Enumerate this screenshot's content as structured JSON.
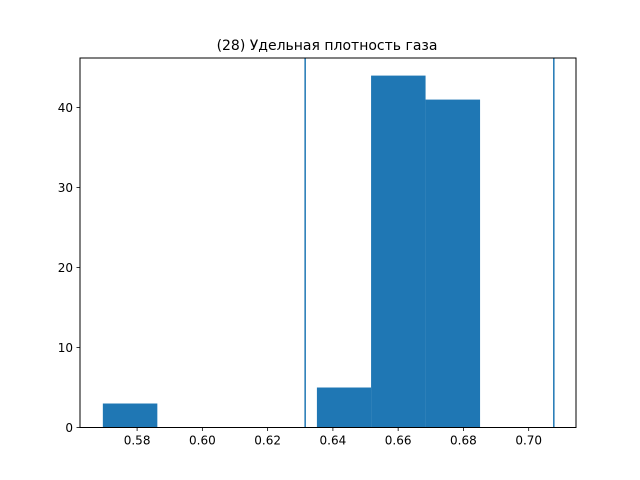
{
  "chart_data": {
    "type": "bar",
    "title": "(28) Удельная плотность газа",
    "xlabel": "",
    "ylabel": "",
    "xlim": [
      0.5625,
      0.7145
    ],
    "ylim": [
      0,
      46.2
    ],
    "x_ticks": [
      "0.58",
      "0.60",
      "0.62",
      "0.64",
      "0.66",
      "0.68",
      "0.70"
    ],
    "x_tick_values": [
      0.58,
      0.6,
      0.62,
      0.64,
      0.66,
      0.68,
      0.7
    ],
    "y_ticks": [
      "0",
      "10",
      "20",
      "30",
      "40"
    ],
    "y_tick_values": [
      0,
      10,
      20,
      30,
      40
    ],
    "bins": [
      {
        "x0": 0.5695,
        "x1": 0.5862,
        "value": 3
      },
      {
        "x0": 0.5862,
        "x1": 0.6029,
        "value": 0
      },
      {
        "x0": 0.6029,
        "x1": 0.6196,
        "value": 0
      },
      {
        "x0": 0.6196,
        "x1": 0.6351,
        "value": 0
      },
      {
        "x0": 0.6351,
        "x1": 0.6517,
        "value": 5
      },
      {
        "x0": 0.6517,
        "x1": 0.6684,
        "value": 44
      },
      {
        "x0": 0.6684,
        "x1": 0.6851,
        "value": 41
      }
    ],
    "vlines": [
      0.6315,
      0.7077
    ],
    "bar_color": "#1f77b4",
    "line_color": "#1f77b4",
    "grid": false
  }
}
